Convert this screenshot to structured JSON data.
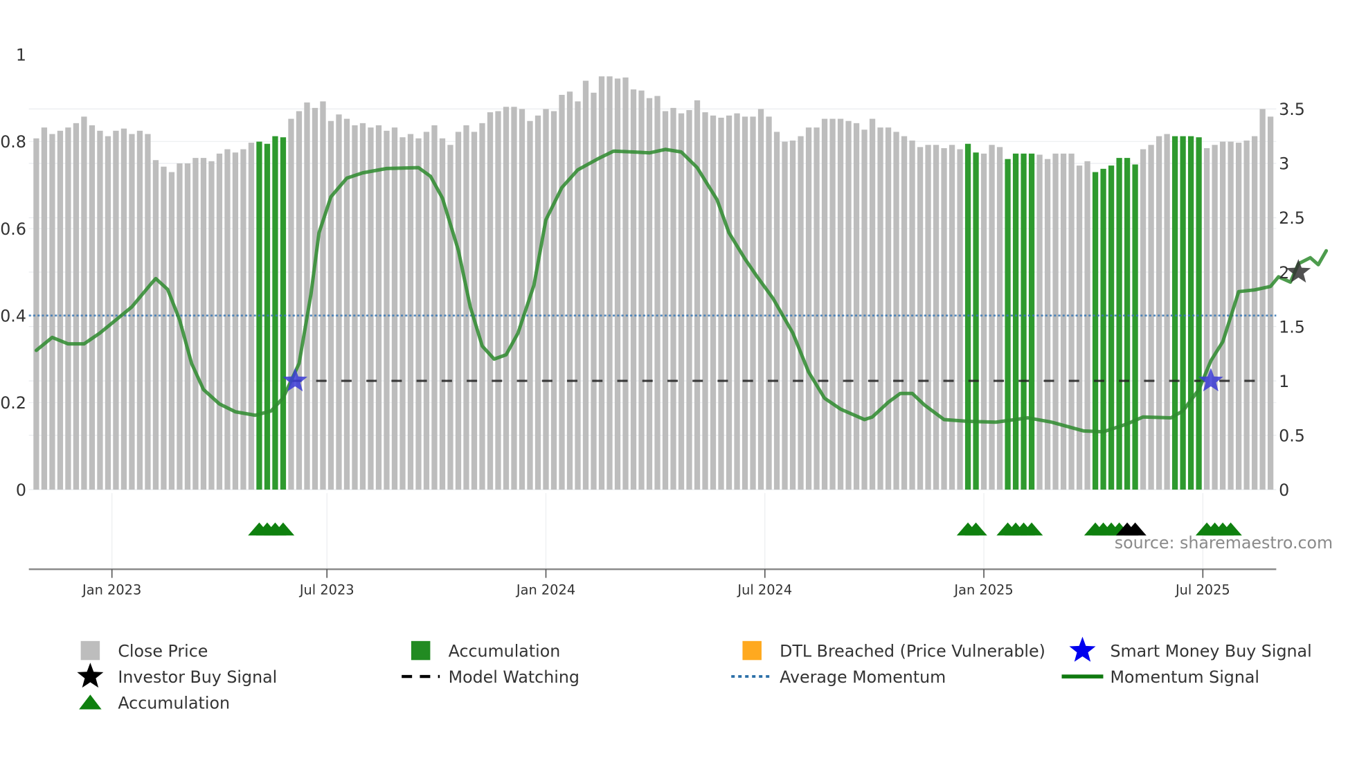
{
  "chart_data": {
    "type": "bar",
    "title": "",
    "xlabel": "",
    "ylabel_left": "",
    "ylabel_right": "",
    "left_axis": {
      "ticks": [
        0,
        0.2,
        0.4,
        0.6,
        0.8,
        1
      ],
      "tick_labels": [
        "0",
        "0.2",
        "0.4",
        "0.6",
        "0.8",
        "1"
      ],
      "range": [
        0,
        1
      ]
    },
    "right_axis": {
      "ticks": [
        0,
        0.5,
        1,
        1.5,
        2,
        2.5,
        3,
        3.5
      ],
      "tick_labels": [
        "0",
        "0.5",
        "1",
        "1.5",
        "2",
        "2.5",
        "3",
        "3.5"
      ],
      "range": [
        0,
        3.5
      ]
    },
    "x_axis": {
      "tick_labels": [
        "Jan 2023",
        "Jul 2023",
        "Jan 2024",
        "Jul 2024",
        "Jan 2025",
        "Jul 2025"
      ],
      "tick_bar_index": [
        9.5,
        36.5,
        64,
        91.5,
        119,
        146.5
      ]
    },
    "grid": true,
    "legend_position": "bottom",
    "series": [
      {
        "name": "Close Price",
        "kind": "bar",
        "axis": "right",
        "color": "#bdbdbd",
        "values": [
          3.23,
          3.33,
          3.27,
          3.3,
          3.33,
          3.37,
          3.43,
          3.35,
          3.3,
          3.25,
          3.3,
          3.32,
          3.27,
          3.3,
          3.27,
          3.03,
          2.97,
          2.92,
          3.0,
          3.0,
          3.05,
          3.05,
          3.02,
          3.09,
          3.13,
          3.1,
          3.13,
          3.19,
          3.2,
          3.18,
          3.25,
          3.24,
          3.41,
          3.48,
          3.56,
          3.51,
          3.57,
          3.39,
          3.45,
          3.41,
          3.35,
          3.37,
          3.33,
          3.35,
          3.3,
          3.33,
          3.24,
          3.27,
          3.23,
          3.29,
          3.35,
          3.23,
          3.17,
          3.29,
          3.35,
          3.29,
          3.37,
          3.47,
          3.48,
          3.52,
          3.52,
          3.5,
          3.39,
          3.44,
          3.5,
          3.48,
          3.63,
          3.66,
          3.57,
          3.76,
          3.65,
          3.8,
          3.8,
          3.78,
          3.79,
          3.68,
          3.67,
          3.6,
          3.62,
          3.48,
          3.51,
          3.46,
          3.49,
          3.58,
          3.47,
          3.44,
          3.42,
          3.44,
          3.46,
          3.43,
          3.43,
          3.5,
          3.43,
          3.29,
          3.2,
          3.21,
          3.25,
          3.33,
          3.33,
          3.41,
          3.41,
          3.41,
          3.39,
          3.37,
          3.31,
          3.41,
          3.33,
          3.33,
          3.29,
          3.25,
          3.21,
          3.15,
          3.17,
          3.17,
          3.14,
          3.17,
          3.13,
          3.18,
          3.1,
          3.09,
          3.17,
          3.15,
          3.04,
          3.09,
          3.09,
          3.09,
          3.08,
          3.04,
          3.09,
          3.09,
          3.09,
          2.98,
          3.02,
          2.92,
          2.95,
          2.98,
          3.05,
          3.05,
          2.99,
          3.13,
          3.17,
          3.25,
          3.27,
          3.25,
          3.25,
          3.25,
          3.24,
          3.14,
          3.17,
          3.2,
          3.2,
          3.19,
          3.21,
          3.25,
          3.5,
          3.43
        ]
      },
      {
        "name": "Accumulation",
        "kind": "bar-highlight",
        "color": "#2e9a2e",
        "bar_indices": [
          28,
          29,
          30,
          31,
          117,
          118,
          122,
          123,
          124,
          125,
          133,
          134,
          135,
          136,
          137,
          138,
          143,
          144,
          145,
          146
        ]
      },
      {
        "name": "DTL Breached (Price Vulnerable)",
        "kind": "bar-highlight",
        "color": "#ffa91f",
        "bar_indices": []
      },
      {
        "name": "Momentum Signal",
        "kind": "line",
        "axis": "left",
        "color": "#2e8b2e",
        "points": [
          [
            0,
            0.32
          ],
          [
            2,
            0.35
          ],
          [
            4,
            0.335
          ],
          [
            6,
            0.335
          ],
          [
            8,
            0.36
          ],
          [
            12,
            0.42
          ],
          [
            14.5,
            0.475
          ],
          [
            15,
            0.485
          ],
          [
            16.5,
            0.46
          ],
          [
            18,
            0.39
          ],
          [
            19.5,
            0.29
          ],
          [
            21,
            0.23
          ],
          [
            23,
            0.197
          ],
          [
            25,
            0.179
          ],
          [
            27.5,
            0.171
          ],
          [
            29.5,
            0.181
          ],
          [
            31,
            0.211
          ],
          [
            33,
            0.29
          ],
          [
            34.5,
            0.45
          ],
          [
            35.5,
            0.59
          ],
          [
            37,
            0.673
          ],
          [
            39,
            0.716
          ],
          [
            41,
            0.728
          ],
          [
            44,
            0.738
          ],
          [
            48,
            0.74
          ],
          [
            49.5,
            0.72
          ],
          [
            51,
            0.67
          ],
          [
            53,
            0.55
          ],
          [
            54.5,
            0.42
          ],
          [
            56,
            0.33
          ],
          [
            57.5,
            0.3
          ],
          [
            59,
            0.31
          ],
          [
            60.5,
            0.36
          ],
          [
            62.5,
            0.47
          ],
          [
            64,
            0.62
          ],
          [
            66,
            0.694
          ],
          [
            68,
            0.735
          ],
          [
            70.5,
            0.76
          ],
          [
            72.5,
            0.778
          ],
          [
            75,
            0.776
          ],
          [
            77,
            0.774
          ],
          [
            79,
            0.782
          ],
          [
            81,
            0.776
          ],
          [
            83,
            0.74
          ],
          [
            85.5,
            0.666
          ],
          [
            87,
            0.59
          ],
          [
            89,
            0.53
          ],
          [
            90.5,
            0.49
          ],
          [
            92.5,
            0.44
          ],
          [
            95,
            0.36
          ],
          [
            97,
            0.27
          ],
          [
            99,
            0.21
          ],
          [
            101,
            0.185
          ],
          [
            104,
            0.161
          ],
          [
            105,
            0.167
          ],
          [
            107,
            0.201
          ],
          [
            108.5,
            0.221
          ],
          [
            110,
            0.221
          ],
          [
            111.5,
            0.195
          ],
          [
            114,
            0.161
          ],
          [
            117,
            0.157
          ],
          [
            120.5,
            0.155
          ],
          [
            124.5,
            0.165
          ],
          [
            127.5,
            0.155
          ],
          [
            131.5,
            0.135
          ],
          [
            134,
            0.133
          ],
          [
            137,
            0.151
          ],
          [
            139,
            0.167
          ],
          [
            142.5,
            0.165
          ],
          [
            144,
            0.181
          ],
          [
            146,
            0.23
          ],
          [
            147.5,
            0.296
          ],
          [
            149,
            0.34
          ],
          [
            151,
            0.455
          ],
          [
            153,
            0.459
          ],
          [
            155,
            0.467
          ],
          [
            156,
            0.489
          ],
          [
            157.5,
            0.477
          ],
          [
            158.5,
            0.519
          ],
          [
            160,
            0.533
          ],
          [
            161,
            0.517
          ],
          [
            162,
            0.549
          ]
        ]
      },
      {
        "name": "Average Momentum",
        "kind": "hline",
        "axis": "left",
        "color": "#3a78b5",
        "style": "dotted",
        "value": 0.4
      },
      {
        "name": "Model Watching",
        "kind": "hline-segment",
        "axis": "left",
        "color": "#222222",
        "style": "dashed",
        "value": 0.25,
        "from_index": 32,
        "to_index": 165
      },
      {
        "name": "Smart Money Buy Signal",
        "kind": "marker",
        "marker": "star",
        "axis": "left",
        "color": "#3b3bd6",
        "points": [
          [
            32.5,
            0.25
          ],
          [
            147.5,
            0.25
          ]
        ]
      },
      {
        "name": "Investor Buy Signal",
        "kind": "marker",
        "marker": "star",
        "axis": "left",
        "color": "#333333",
        "points": [
          [
            158.5,
            0.5
          ]
        ]
      },
      {
        "name": "Accumulation",
        "kind": "marker",
        "marker": "triangle",
        "lane": "signals",
        "color": "#0f800f",
        "bar_indices": [
          28,
          29,
          30,
          31,
          117,
          118,
          122,
          123,
          124,
          125,
          133,
          134,
          135,
          136,
          147,
          148,
          149,
          150
        ],
        "extra_markers": [
          {
            "color": "#000000",
            "bar_indices": [
              137,
              138
            ]
          }
        ]
      }
    ],
    "annotations": [
      "source: sharemaestro.com"
    ]
  },
  "legend": {
    "items": [
      {
        "label": "Close Price",
        "symbol": "square",
        "color": "#bdbdbd"
      },
      {
        "label": "Accumulation",
        "symbol": "square",
        "color": "#228b22"
      },
      {
        "label": "DTL Breached (Price Vulnerable)",
        "symbol": "square",
        "color": "#ffa91f"
      },
      {
        "label": "Smart Money Buy Signal",
        "symbol": "star",
        "color": "#0000ee"
      },
      {
        "label": "Investor Buy Signal",
        "symbol": "star",
        "color": "#000000"
      },
      {
        "label": "Model Watching",
        "symbol": "dash",
        "color": "#000000"
      },
      {
        "label": "Average Momentum",
        "symbol": "dots",
        "color": "#2a6fa8"
      },
      {
        "label": "Momentum Signal",
        "symbol": "line",
        "color": "#107a10"
      },
      {
        "label": "Accumulation",
        "symbol": "triangle",
        "color": "#0f800f"
      }
    ]
  },
  "watermark": "source: sharemaestro.com"
}
